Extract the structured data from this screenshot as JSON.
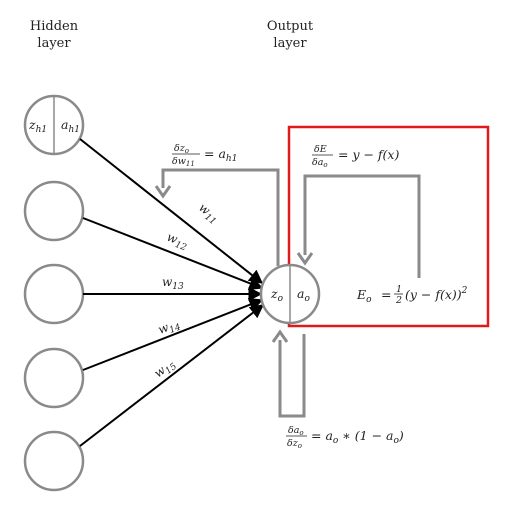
{
  "headers": {
    "hidden": [
      "Hidden",
      "layer"
    ],
    "output": [
      "Output",
      "layer"
    ]
  },
  "hidden_neuron_1": {
    "z": "z",
    "z_sub": "h1",
    "a": "a",
    "a_sub": "h1"
  },
  "output_neuron": {
    "z": "z",
    "z_sub": "o",
    "a": "a",
    "a_sub": "o"
  },
  "weights": [
    {
      "w": "w",
      "sub": "11"
    },
    {
      "w": "w",
      "sub": "12"
    },
    {
      "w": "w",
      "sub": "13"
    },
    {
      "w": "w",
      "sub": "14"
    },
    {
      "w": "w",
      "sub": "15"
    }
  ],
  "derivatives": {
    "dz_dw": {
      "num": "δz",
      "num_sub": "o",
      "den": "δw",
      "den_sub": "11",
      "rhs": "= a",
      "rhs_sub": "h1"
    },
    "dE_da": {
      "num": "δE",
      "den": "δa",
      "den_sub": "o",
      "rhs": "= y − f(x)"
    },
    "da_dz": {
      "num": "δa",
      "num_sub": "o",
      "den": "δz",
      "den_sub": "o",
      "rhs": "= a",
      "rhs_sub": "o",
      "rhs2": " ∗ (1 − a",
      "rhs2_sub": "o",
      "rhs3": ")"
    }
  },
  "error_formula": {
    "lhs": "E",
    "lhs_sub": "o",
    "eq": "=",
    "half_num": "1",
    "half_den": "2",
    "rhs": "(y − f(x))",
    "sup": "2"
  },
  "colors": {
    "neuron_stroke": "#8a8a8a",
    "arrow_gray": "#8a8a8a",
    "highlight": "#e01a1a",
    "weight_line": "#000000"
  }
}
